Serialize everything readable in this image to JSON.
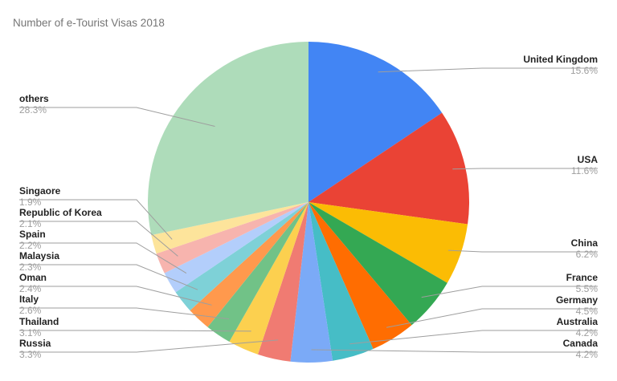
{
  "chart_data": {
    "type": "pie",
    "title": "Number of e-Tourist Visas 2018",
    "slices": [
      {
        "label": "United Kingdom",
        "value": 15.6,
        "display": "15.6%",
        "color": "#4285f4"
      },
      {
        "label": "USA",
        "value": 11.6,
        "display": "11.6%",
        "color": "#ea4335"
      },
      {
        "label": "China",
        "value": 6.2,
        "display": "6.2%",
        "color": "#fbbc04"
      },
      {
        "label": "France",
        "value": 5.5,
        "display": "5.5%",
        "color": "#34a853"
      },
      {
        "label": "Germany",
        "value": 4.5,
        "display": "4.5%",
        "color": "#ff6d01"
      },
      {
        "label": "Australia",
        "value": 4.2,
        "display": "4.2%",
        "color": "#46bdc6"
      },
      {
        "label": "Canada",
        "value": 4.2,
        "display": "4.2%",
        "color": "#7baaf7"
      },
      {
        "label": "Russia",
        "value": 3.3,
        "display": "3.3%",
        "color": "#f07b72"
      },
      {
        "label": "Thailand",
        "value": 3.1,
        "display": "3.1%",
        "color": "#fcd04f"
      },
      {
        "label": "Italy",
        "value": 2.6,
        "display": "2.6%",
        "color": "#71c287"
      },
      {
        "label": "Oman",
        "value": 2.4,
        "display": "2.4%",
        "color": "#ff994d"
      },
      {
        "label": "Malaysia",
        "value": 2.3,
        "display": "2.3%",
        "color": "#7ed1d7"
      },
      {
        "label": "Spain",
        "value": 2.2,
        "display": "2.2%",
        "color": "#b3cefb"
      },
      {
        "label": "Republic of Korea",
        "value": 2.1,
        "display": "2.1%",
        "color": "#f7b4ae"
      },
      {
        "label": "Singaore",
        "value": 1.9,
        "display": "1.9%",
        "color": "#fde49b"
      },
      {
        "label": "others",
        "value": 28.3,
        "display": "28.3%",
        "color": "#aedcba"
      }
    ]
  }
}
